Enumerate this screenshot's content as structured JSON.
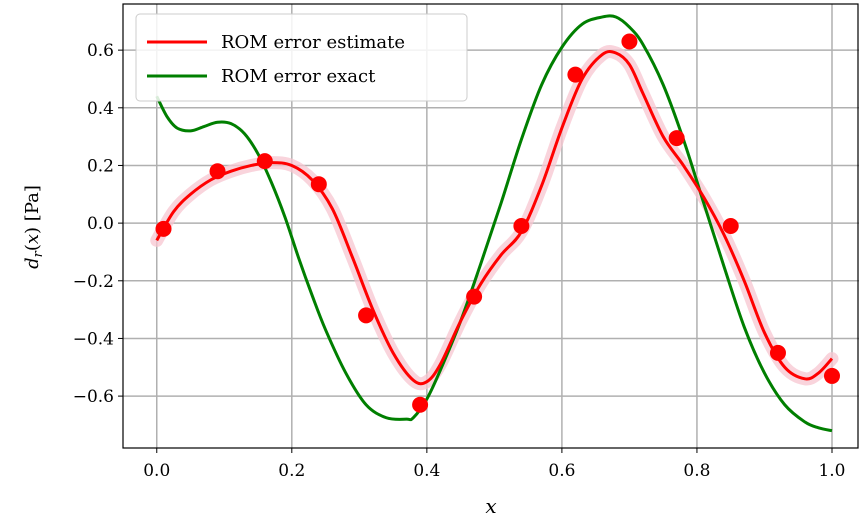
{
  "chart_data": {
    "type": "line",
    "xlabel": "x",
    "ylabel": "d_r(x) [Pa]",
    "ylabel_parts": {
      "d": "d",
      "r": "r",
      "x": "x",
      "unit": "[Pa]"
    },
    "xlim": [
      -0.05,
      1.04
    ],
    "ylim": [
      -0.78,
      0.76
    ],
    "x_ticks": [
      0.0,
      0.2,
      0.4,
      0.6,
      0.8,
      1.0
    ],
    "x_tick_labels": [
      "0.0",
      "0.2",
      "0.4",
      "0.6",
      "0.8",
      "1.0"
    ],
    "y_ticks": [
      -0.6,
      -0.4,
      -0.2,
      0.0,
      0.2,
      0.4,
      0.6
    ],
    "y_tick_labels": [
      "−0.6",
      "−0.4",
      "−0.2",
      "0.0",
      "0.2",
      "0.4",
      "0.6"
    ],
    "grid": true,
    "legend_position": "top-left",
    "series": [
      {
        "name": "ROM error estimate",
        "color": "#ff0000",
        "band_color": "#f7c6d0",
        "x": [
          0.0,
          0.025,
          0.05,
          0.08,
          0.11,
          0.14,
          0.17,
          0.2,
          0.23,
          0.26,
          0.29,
          0.32,
          0.35,
          0.38,
          0.4,
          0.42,
          0.45,
          0.48,
          0.51,
          0.54,
          0.57,
          0.6,
          0.63,
          0.66,
          0.68,
          0.7,
          0.72,
          0.75,
          0.78,
          0.81,
          0.84,
          0.87,
          0.9,
          0.93,
          0.96,
          0.98,
          1.0
        ],
        "y": [
          -0.06,
          0.04,
          0.1,
          0.15,
          0.18,
          0.2,
          0.21,
          0.2,
          0.15,
          0.05,
          -0.12,
          -0.3,
          -0.45,
          -0.545,
          -0.55,
          -0.49,
          -0.34,
          -0.21,
          -0.11,
          -0.03,
          0.13,
          0.33,
          0.5,
          0.585,
          0.59,
          0.55,
          0.45,
          0.3,
          0.2,
          0.09,
          -0.04,
          -0.2,
          -0.38,
          -0.5,
          -0.54,
          -0.52,
          -0.47
        ]
      },
      {
        "name": "ROM error exact",
        "color": "#007f00",
        "x": [
          0.0,
          0.015,
          0.03,
          0.05,
          0.07,
          0.09,
          0.11,
          0.13,
          0.15,
          0.17,
          0.19,
          0.21,
          0.23,
          0.25,
          0.28,
          0.31,
          0.34,
          0.37,
          0.38,
          0.4,
          0.42,
          0.45,
          0.48,
          0.51,
          0.54,
          0.57,
          0.6,
          0.63,
          0.66,
          0.68,
          0.7,
          0.72,
          0.75,
          0.78,
          0.81,
          0.84,
          0.87,
          0.9,
          0.93,
          0.96,
          0.98,
          1.0
        ],
        "y": [
          0.44,
          0.37,
          0.33,
          0.32,
          0.335,
          0.35,
          0.345,
          0.31,
          0.24,
          0.14,
          0.02,
          -0.12,
          -0.25,
          -0.37,
          -0.52,
          -0.63,
          -0.675,
          -0.68,
          -0.675,
          -0.61,
          -0.51,
          -0.34,
          -0.14,
          0.07,
          0.29,
          0.48,
          0.61,
          0.69,
          0.715,
          0.715,
          0.68,
          0.62,
          0.48,
          0.29,
          0.07,
          -0.15,
          -0.36,
          -0.52,
          -0.63,
          -0.69,
          -0.71,
          -0.72
        ]
      }
    ],
    "points": {
      "color": "#ff0000",
      "x": [
        0.01,
        0.09,
        0.16,
        0.24,
        0.31,
        0.39,
        0.47,
        0.54,
        0.62,
        0.7,
        0.77,
        0.85,
        0.92,
        1.0
      ],
      "y": [
        -0.02,
        0.18,
        0.215,
        0.135,
        -0.32,
        -0.63,
        -0.255,
        -0.01,
        0.515,
        0.63,
        0.295,
        -0.01,
        -0.45,
        -0.53
      ]
    }
  }
}
